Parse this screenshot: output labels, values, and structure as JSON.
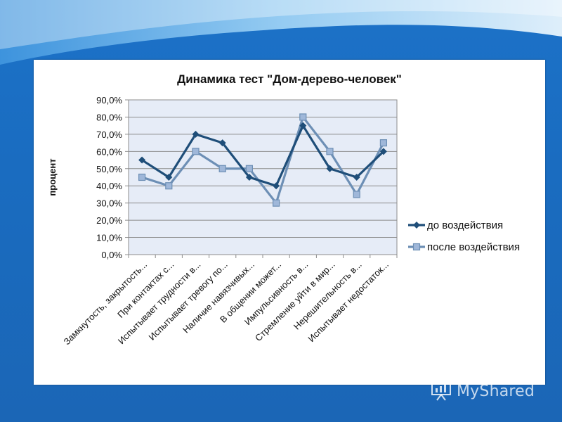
{
  "chart_data": {
    "type": "line",
    "title": "Динамика тест \"Дом-дерево-человек\"",
    "ylabel": "процент",
    "xlabel": "",
    "ylim": [
      0,
      90
    ],
    "yticks": [
      "0,0%",
      "10,0%",
      "20,0%",
      "30,0%",
      "40,0%",
      "50,0%",
      "60,0%",
      "70,0%",
      "80,0%",
      "90,0%"
    ],
    "ytick_values": [
      0,
      10,
      20,
      30,
      40,
      50,
      60,
      70,
      80,
      90
    ],
    "categories": [
      "Замкнутость, закрытость...",
      "При контактах с...",
      "Испытывает трудности в...",
      "Испытывает тревогу по...",
      "Наличие навязчивых...",
      "В общении может...",
      "Импульсивность в...",
      "Стремление уйти в мир...",
      "Нерешительность в...",
      "Испытывает недостаток..."
    ],
    "series": [
      {
        "name": "до воздействия",
        "color": "#1f4e79",
        "marker": "diamond",
        "values": [
          55,
          45,
          70,
          65,
          45,
          40,
          75,
          50,
          45,
          60
        ]
      },
      {
        "name": "после воздействия",
        "color": "#6d8fb5",
        "marker": "square",
        "values": [
          45,
          40,
          60,
          50,
          50,
          30,
          80,
          60,
          35,
          65
        ]
      }
    ],
    "grid": true,
    "legend": "right"
  },
  "watermark": {
    "text": "MyShared",
    "icon": "presentation-board-icon"
  },
  "colors": {
    "background": "#1b6cc0",
    "plot_area": "#e6ecf7",
    "gridline": "#8c8c8c"
  }
}
